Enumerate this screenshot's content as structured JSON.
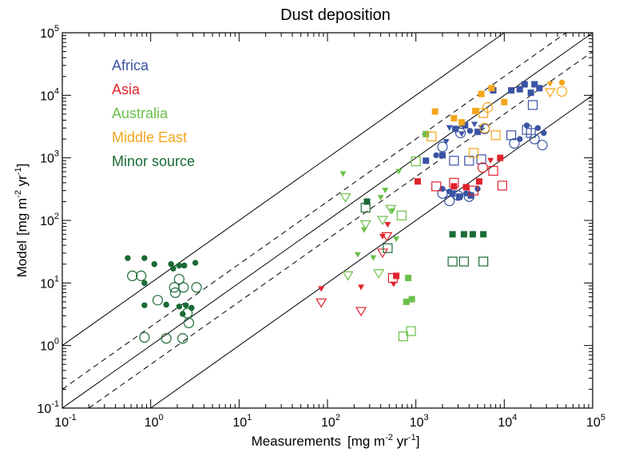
{
  "chart_data": {
    "type": "scatter",
    "title": "Dust deposition",
    "xlabel": {
      "main": "Measurements",
      "unit_open": "[mg m",
      "exp1": "-2",
      "unit_mid": " yr",
      "exp2": "-1",
      "unit_close": "]"
    },
    "ylabel": {
      "main": "Model",
      "unit_open": "[mg m",
      "exp1": "-2",
      "unit_mid": " yr",
      "exp2": "-1",
      "unit_close": "]"
    },
    "xscale": "log",
    "yscale": "log",
    "xlim": [
      0.1,
      100000
    ],
    "ylim": [
      0.1,
      100000
    ],
    "x_ticks": [
      {
        "value": 0.1,
        "base": "10",
        "exp": "-1"
      },
      {
        "value": 1,
        "base": "10",
        "exp": "0"
      },
      {
        "value": 10,
        "base": "10",
        "exp": "1"
      },
      {
        "value": 100,
        "base": "10",
        "exp": "2"
      },
      {
        "value": 1000,
        "base": "10",
        "exp": "3"
      },
      {
        "value": 10000,
        "base": "10",
        "exp": "4"
      },
      {
        "value": 100000,
        "base": "10",
        "exp": "5"
      }
    ],
    "y_ticks": [
      {
        "value": 0.1,
        "base": "10",
        "exp": "-1"
      },
      {
        "value": 1,
        "base": "10",
        "exp": "0"
      },
      {
        "value": 10,
        "base": "10",
        "exp": "1"
      },
      {
        "value": 100,
        "base": "10",
        "exp": "2"
      },
      {
        "value": 1000,
        "base": "10",
        "exp": "3"
      },
      {
        "value": 10000,
        "base": "10",
        "exp": "4"
      },
      {
        "value": 100000,
        "base": "10",
        "exp": "5"
      }
    ],
    "reference_lines": [
      {
        "ratio": 10,
        "style": "solid"
      },
      {
        "ratio": 2,
        "style": "dashed"
      },
      {
        "ratio": 1,
        "style": "solid"
      },
      {
        "ratio": 0.5,
        "style": "dashed"
      },
      {
        "ratio": 0.1,
        "style": "solid"
      }
    ],
    "grid": false,
    "legend_position": "top-left",
    "series": [
      {
        "name": "Africa",
        "color": "#3a54a4",
        "points": [
          {
            "x": 2000,
            "y": 320,
            "m": "circle-filled"
          },
          {
            "x": 2400,
            "y": 290,
            "m": "circle-filled"
          },
          {
            "x": 2600,
            "y": 270,
            "m": "square-filled"
          },
          {
            "x": 3100,
            "y": 240,
            "m": "square-filled"
          },
          {
            "x": 3700,
            "y": 270,
            "m": "circle-filled"
          },
          {
            "x": 4200,
            "y": 250,
            "m": "square-filled"
          },
          {
            "x": 5000,
            "y": 320,
            "m": "circle-filled"
          },
          {
            "x": 2000,
            "y": 270,
            "m": "circle-open"
          },
          {
            "x": 2400,
            "y": 205,
            "m": "circle-open"
          },
          {
            "x": 3000,
            "y": 250,
            "m": "circle-open"
          },
          {
            "x": 4000,
            "y": 240,
            "m": "circle-open"
          },
          {
            "x": 1300,
            "y": 900,
            "m": "square-filled"
          },
          {
            "x": 1700,
            "y": 1100,
            "m": "circle-filled"
          },
          {
            "x": 2000,
            "y": 1100,
            "m": "square-filled"
          },
          {
            "x": 2200,
            "y": 1800,
            "m": "triangle-filled"
          },
          {
            "x": 2400,
            "y": 3000,
            "m": "triangle-filled"
          },
          {
            "x": 2800,
            "y": 2900,
            "m": "square-filled"
          },
          {
            "x": 3300,
            "y": 2400,
            "m": "triangle-filled"
          },
          {
            "x": 3600,
            "y": 3300,
            "m": "square-filled"
          },
          {
            "x": 4100,
            "y": 2700,
            "m": "circle-filled"
          },
          {
            "x": 4600,
            "y": 3400,
            "m": "triangle-filled"
          },
          {
            "x": 5000,
            "y": 2600,
            "m": "square-filled"
          },
          {
            "x": 5500,
            "y": 3000,
            "m": "triangle-filled"
          },
          {
            "x": 7500,
            "y": 12000,
            "m": "square-filled"
          },
          {
            "x": 12000,
            "y": 12000,
            "m": "square-filled"
          },
          {
            "x": 15000,
            "y": 12500,
            "m": "square-filled"
          },
          {
            "x": 17000,
            "y": 15000,
            "m": "square-filled"
          },
          {
            "x": 20000,
            "y": 11000,
            "m": "square-filled"
          },
          {
            "x": 22000,
            "y": 15000,
            "m": "square-filled"
          },
          {
            "x": 25000,
            "y": 13000,
            "m": "square-filled"
          },
          {
            "x": 2000,
            "y": 1500,
            "m": "circle-open"
          },
          {
            "x": 2700,
            "y": 900,
            "m": "square-open"
          },
          {
            "x": 3200,
            "y": 2500,
            "m": "circle-open"
          },
          {
            "x": 4000,
            "y": 900,
            "m": "square-open"
          },
          {
            "x": 5500,
            "y": 950,
            "m": "square-open"
          },
          {
            "x": 6000,
            "y": 2900,
            "m": "circle-open"
          },
          {
            "x": 12000,
            "y": 2300,
            "m": "square-open"
          },
          {
            "x": 13000,
            "y": 1700,
            "m": "circle-open"
          },
          {
            "x": 18000,
            "y": 2800,
            "m": "square-open"
          },
          {
            "x": 20000,
            "y": 2500,
            "m": "square-open"
          },
          {
            "x": 22000,
            "y": 2000,
            "m": "circle-open"
          },
          {
            "x": 21000,
            "y": 7000,
            "m": "square-open"
          },
          {
            "x": 27000,
            "y": 1600,
            "m": "circle-open"
          },
          {
            "x": 15000,
            "y": 2000,
            "m": "circle-filled"
          },
          {
            "x": 18000,
            "y": 3300,
            "m": "circle-filled"
          },
          {
            "x": 24000,
            "y": 3000,
            "m": "circle-filled"
          },
          {
            "x": 28000,
            "y": 2500,
            "m": "circle-filled"
          }
        ]
      },
      {
        "name": "Asia",
        "color": "#e0232c",
        "points": [
          {
            "x": 85,
            "y": 8,
            "m": "triangle-filled"
          },
          {
            "x": 240,
            "y": 8.5,
            "m": "triangle-filled"
          },
          {
            "x": 420,
            "y": 55,
            "m": "triangle-filled"
          },
          {
            "x": 480,
            "y": 85,
            "m": "triangle-filled"
          },
          {
            "x": 560,
            "y": 9.5,
            "m": "triangle-filled"
          },
          {
            "x": 600,
            "y": 13,
            "m": "square-filled"
          },
          {
            "x": 1050,
            "y": 420,
            "m": "square-filled"
          },
          {
            "x": 2700,
            "y": 350,
            "m": "square-filled"
          },
          {
            "x": 3700,
            "y": 340,
            "m": "square-filled"
          },
          {
            "x": 5200,
            "y": 420,
            "m": "square-filled"
          },
          {
            "x": 7000,
            "y": 900,
            "m": "triangle-filled"
          },
          {
            "x": 9000,
            "y": 1000,
            "m": "square-filled"
          },
          {
            "x": 85,
            "y": 4.8,
            "m": "triangle-open"
          },
          {
            "x": 240,
            "y": 3.5,
            "m": "triangle-open"
          },
          {
            "x": 420,
            "y": 30,
            "m": "triangle-open"
          },
          {
            "x": 470,
            "y": 55,
            "m": "triangle-open"
          },
          {
            "x": 550,
            "y": 12,
            "m": "square-open"
          },
          {
            "x": 1700,
            "y": 350,
            "m": "square-open"
          },
          {
            "x": 2700,
            "y": 400,
            "m": "square-open"
          },
          {
            "x": 4500,
            "y": 300,
            "m": "square-open"
          },
          {
            "x": 5700,
            "y": 700,
            "m": "circle-open"
          },
          {
            "x": 7500,
            "y": 620,
            "m": "square-open"
          },
          {
            "x": 9500,
            "y": 360,
            "m": "square-open"
          }
        ]
      },
      {
        "name": "Australia",
        "color": "#6bbf48",
        "points": [
          {
            "x": 150,
            "y": 550,
            "m": "triangle-filled"
          },
          {
            "x": 220,
            "y": 28,
            "m": "triangle-filled"
          },
          {
            "x": 260,
            "y": 70,
            "m": "triangle-filled"
          },
          {
            "x": 330,
            "y": 25,
            "m": "triangle-filled"
          },
          {
            "x": 400,
            "y": 230,
            "m": "triangle-filled"
          },
          {
            "x": 450,
            "y": 300,
            "m": "triangle-filled"
          },
          {
            "x": 540,
            "y": 140,
            "m": "triangle-filled"
          },
          {
            "x": 600,
            "y": 50,
            "m": "triangle-filled"
          },
          {
            "x": 640,
            "y": 600,
            "m": "triangle-filled"
          },
          {
            "x": 820,
            "y": 12,
            "m": "square-filled"
          },
          {
            "x": 780,
            "y": 5,
            "m": "square-filled"
          },
          {
            "x": 900,
            "y": 5.5,
            "m": "square-filled"
          },
          {
            "x": 1300,
            "y": 2400,
            "m": "square-filled"
          },
          {
            "x": 160,
            "y": 230,
            "m": "triangle-open"
          },
          {
            "x": 170,
            "y": 13,
            "m": "triangle-open"
          },
          {
            "x": 270,
            "y": 85,
            "m": "triangle-open"
          },
          {
            "x": 380,
            "y": 14,
            "m": "triangle-open"
          },
          {
            "x": 420,
            "y": 100,
            "m": "triangle-open"
          },
          {
            "x": 520,
            "y": 150,
            "m": "triangle-open"
          },
          {
            "x": 690,
            "y": 120,
            "m": "square-open"
          },
          {
            "x": 720,
            "y": 1.4,
            "m": "square-open"
          },
          {
            "x": 880,
            "y": 1.7,
            "m": "square-open"
          },
          {
            "x": 1000,
            "y": 880,
            "m": "square-open"
          }
        ]
      },
      {
        "name": "Middle East",
        "color": "#f4a61c",
        "points": [
          {
            "x": 1650,
            "y": 5500,
            "m": "square-filled"
          },
          {
            "x": 2700,
            "y": 4300,
            "m": "square-filled"
          },
          {
            "x": 3300,
            "y": 3700,
            "m": "square-filled"
          },
          {
            "x": 4700,
            "y": 5600,
            "m": "square-filled"
          },
          {
            "x": 5500,
            "y": 10500,
            "m": "square-filled"
          },
          {
            "x": 7200,
            "y": 13000,
            "m": "square-filled"
          },
          {
            "x": 10000,
            "y": 7800,
            "m": "square-filled"
          },
          {
            "x": 33000,
            "y": 15000,
            "m": "triangle-filled"
          },
          {
            "x": 45000,
            "y": 16000,
            "m": "circle-filled"
          },
          {
            "x": 1500,
            "y": 2200,
            "m": "square-open"
          },
          {
            "x": 4500,
            "y": 1200,
            "m": "square-open"
          },
          {
            "x": 5800,
            "y": 5200,
            "m": "square-open"
          },
          {
            "x": 6000,
            "y": 3000,
            "m": "circle-open"
          },
          {
            "x": 6500,
            "y": 6400,
            "m": "circle-open"
          },
          {
            "x": 8000,
            "y": 2300,
            "m": "square-open"
          },
          {
            "x": 33000,
            "y": 11000,
            "m": "triangle-open"
          },
          {
            "x": 45000,
            "y": 11500,
            "m": "circle-open"
          }
        ]
      },
      {
        "name": "Minor source",
        "color": "#1a6b35",
        "points": [
          {
            "x": 0.55,
            "y": 25,
            "m": "circle-filled"
          },
          {
            "x": 0.85,
            "y": 25,
            "m": "circle-filled"
          },
          {
            "x": 1.1,
            "y": 20,
            "m": "circle-filled"
          },
          {
            "x": 1.7,
            "y": 20,
            "m": "circle-filled"
          },
          {
            "x": 1.8,
            "y": 17,
            "m": "circle-filled"
          },
          {
            "x": 2.1,
            "y": 19,
            "m": "circle-filled"
          },
          {
            "x": 2.4,
            "y": 19,
            "m": "circle-filled"
          },
          {
            "x": 3.2,
            "y": 21,
            "m": "circle-filled"
          },
          {
            "x": 0.85,
            "y": 10,
            "m": "circle-filled"
          },
          {
            "x": 0.85,
            "y": 4.4,
            "m": "circle-filled"
          },
          {
            "x": 1.5,
            "y": 4.5,
            "m": "circle-filled"
          },
          {
            "x": 2.1,
            "y": 4.2,
            "m": "circle-filled"
          },
          {
            "x": 2.5,
            "y": 4.4,
            "m": "circle-filled"
          },
          {
            "x": 2.9,
            "y": 4,
            "m": "circle-filled"
          },
          {
            "x": 2.3,
            "y": 3.2,
            "m": "circle-filled"
          },
          {
            "x": 280,
            "y": 200,
            "m": "square-filled"
          },
          {
            "x": 2600,
            "y": 60,
            "m": "square-filled"
          },
          {
            "x": 3500,
            "y": 60,
            "m": "square-filled"
          },
          {
            "x": 4400,
            "y": 60,
            "m": "square-filled"
          },
          {
            "x": 5800,
            "y": 60,
            "m": "square-filled"
          },
          {
            "x": 0.62,
            "y": 13,
            "m": "circle-open"
          },
          {
            "x": 0.78,
            "y": 13,
            "m": "circle-open"
          },
          {
            "x": 1.2,
            "y": 5.3,
            "m": "circle-open"
          },
          {
            "x": 1.85,
            "y": 8.5,
            "m": "circle-open"
          },
          {
            "x": 1.9,
            "y": 7,
            "m": "circle-open"
          },
          {
            "x": 2.1,
            "y": 11.5,
            "m": "circle-open"
          },
          {
            "x": 2.35,
            "y": 8.5,
            "m": "circle-open"
          },
          {
            "x": 3.3,
            "y": 8.5,
            "m": "circle-open"
          },
          {
            "x": 0.85,
            "y": 1.35,
            "m": "circle-open"
          },
          {
            "x": 1.5,
            "y": 1.3,
            "m": "circle-open"
          },
          {
            "x": 2.3,
            "y": 1.3,
            "m": "circle-open"
          },
          {
            "x": 2.6,
            "y": 3.3,
            "m": "circle-open"
          },
          {
            "x": 2.7,
            "y": 2.3,
            "m": "circle-open"
          },
          {
            "x": 270,
            "y": 160,
            "m": "square-open"
          },
          {
            "x": 480,
            "y": 36,
            "m": "square-open"
          },
          {
            "x": 2600,
            "y": 22,
            "m": "square-open"
          },
          {
            "x": 3500,
            "y": 22,
            "m": "square-open"
          },
          {
            "x": 5800,
            "y": 22,
            "m": "square-open"
          }
        ]
      }
    ]
  }
}
